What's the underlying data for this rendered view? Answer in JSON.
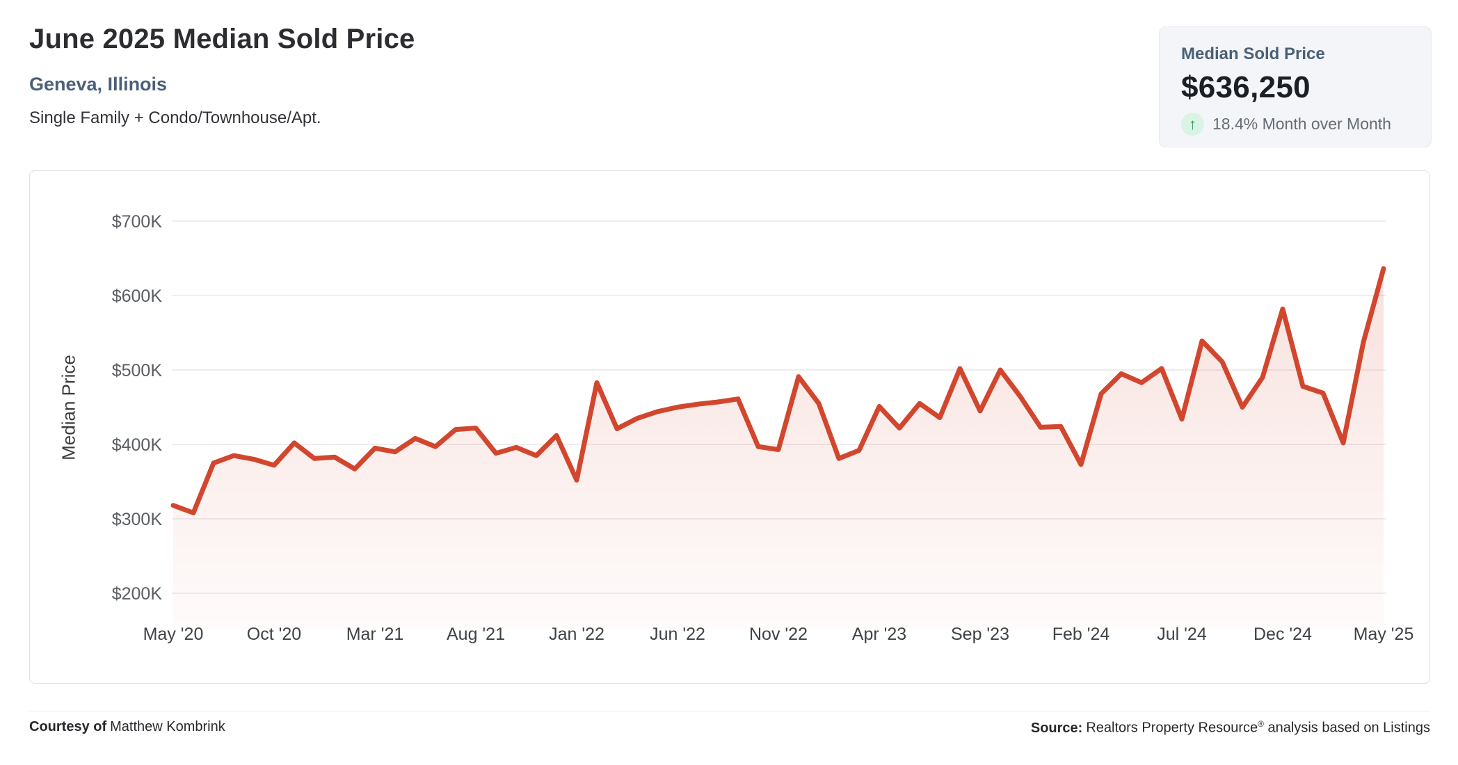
{
  "header": {
    "title": "June 2025 Median Sold Price",
    "location": "Geneva, Illinois",
    "property_types": "Single Family + Condo/Townhouse/Apt."
  },
  "stat_card": {
    "label": "Median Sold Price",
    "value": "$636,250",
    "change_text": "18.4% Month over Month",
    "trend_icon": "up-arrow-icon",
    "trend_direction": "up"
  },
  "footer": {
    "courtesy_label": "Courtesy of",
    "courtesy_name": "Matthew Kombrink",
    "source_label": "Source:",
    "source_name": "Realtors Property Resource",
    "source_reg": "®",
    "source_rest": " analysis based on Listings"
  },
  "colors": {
    "line": "#d2462e",
    "area_fill_top_opacity": 0.18,
    "area_fill_bottom_opacity": 0.02,
    "grid": "#e8e8e8",
    "axis_x_text": "#3f4246",
    "axis_y_text": "#5a5e63",
    "accent_blue": "#4b6078",
    "green": "#2aa05f",
    "green_bg": "#d9f3e4",
    "card_bg": "#f3f5f8"
  },
  "chart_data": {
    "type": "area",
    "title": "",
    "xlabel": "",
    "ylabel": "Median Price",
    "grid": "horizontal",
    "legend": "none",
    "ylim": [
      200000,
      700000
    ],
    "y_axis": {
      "min": 200000,
      "max": 700000,
      "ticks": [
        200000,
        300000,
        400000,
        500000,
        600000,
        700000
      ],
      "tick_labels": [
        "$200K",
        "$300K",
        "$400K",
        "$500K",
        "$600K",
        "$700K"
      ]
    },
    "x_axis": {
      "tick_every": 5,
      "tick_labels": [
        "May '20",
        "Oct '20",
        "Mar '21",
        "Aug '21",
        "Jan '22",
        "Jun '22",
        "Nov '22",
        "Apr '23",
        "Sep '23",
        "Feb '24",
        "Jul '24",
        "Dec '24",
        "May '25"
      ]
    },
    "categories": [
      "May '20",
      "Jun '20",
      "Jul '20",
      "Aug '20",
      "Sep '20",
      "Oct '20",
      "Nov '20",
      "Dec '20",
      "Jan '21",
      "Feb '21",
      "Mar '21",
      "Apr '21",
      "May '21",
      "Jun '21",
      "Jul '21",
      "Aug '21",
      "Sep '21",
      "Oct '21",
      "Nov '21",
      "Dec '21",
      "Jan '22",
      "Feb '22",
      "Mar '22",
      "Apr '22",
      "May '22",
      "Jun '22",
      "Jul '22",
      "Aug '22",
      "Sep '22",
      "Oct '22",
      "Nov '22",
      "Dec '22",
      "Jan '23",
      "Feb '23",
      "Mar '23",
      "Apr '23",
      "May '23",
      "Jun '23",
      "Jul '23",
      "Aug '23",
      "Sep '23",
      "Oct '23",
      "Nov '23",
      "Dec '23",
      "Jan '24",
      "Feb '24",
      "Mar '24",
      "Apr '24",
      "May '24",
      "Jun '24",
      "Jul '24",
      "Aug '24",
      "Sep '24",
      "Oct '24",
      "Nov '24",
      "Dec '24",
      "Jan '25",
      "Feb '25",
      "Mar '25",
      "Apr '25",
      "May '25"
    ],
    "values": [
      318000,
      308000,
      375000,
      385000,
      380000,
      372000,
      402000,
      381000,
      383000,
      367000,
      395000,
      390000,
      408000,
      397000,
      420000,
      422000,
      388000,
      396000,
      385000,
      412000,
      352000,
      483000,
      421000,
      435000,
      444000,
      450000,
      454000,
      457000,
      461000,
      397000,
      393000,
      491000,
      455000,
      381000,
      392000,
      451000,
      422000,
      455000,
      436000,
      502000,
      445000,
      500000,
      464000,
      423000,
      424000,
      373000,
      468000,
      495000,
      483000,
      502000,
      434000,
      539000,
      511000,
      450000,
      490000,
      582000,
      478000,
      469000,
      402000,
      537500,
      636250
    ]
  }
}
